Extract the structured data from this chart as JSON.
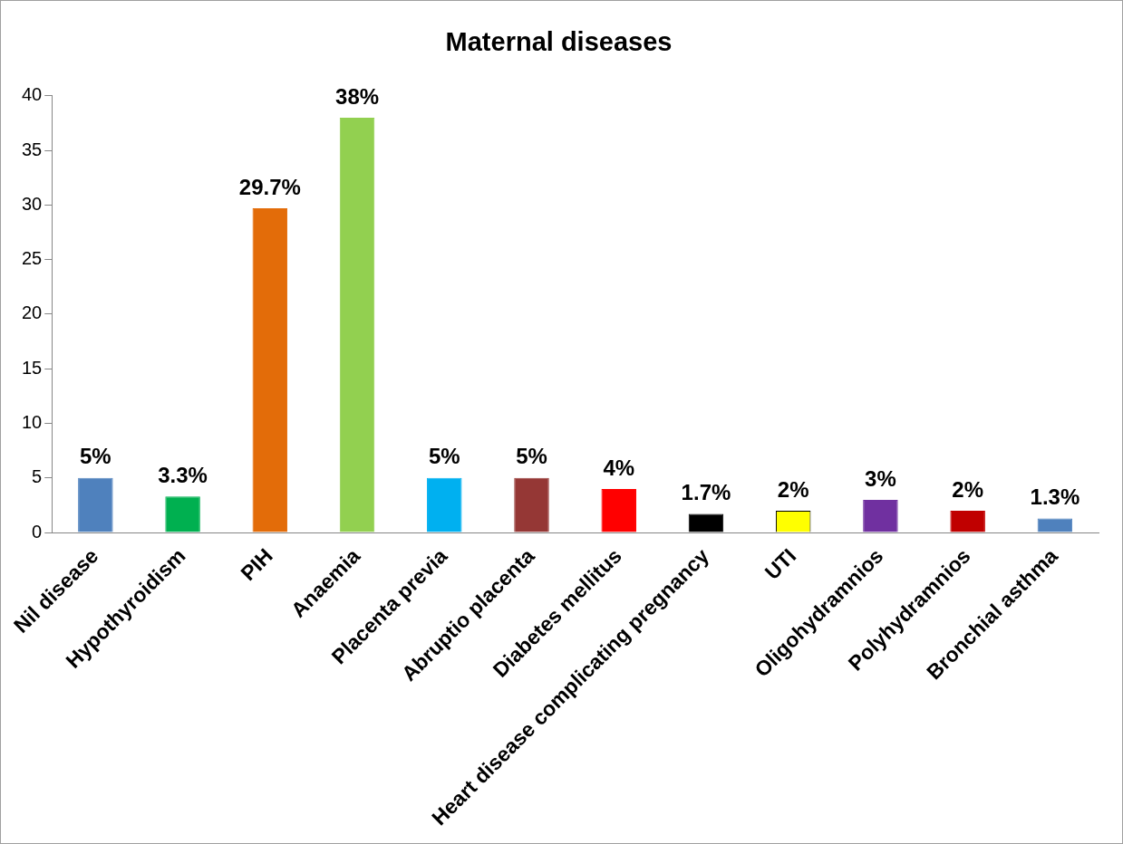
{
  "chart_data": {
    "type": "bar",
    "title": "Maternal diseases",
    "categories": [
      "Nil disease",
      "Hypothyroidism",
      "PIH",
      "Anaemia",
      "Placenta previa",
      "Abruptio placenta",
      "Diabetes mellitus",
      "Heart disease complicating pregnancy",
      "UTI",
      "Oligohydramnios",
      "Polyhydramnios",
      "Bronchial asthma"
    ],
    "values": [
      5,
      3.3,
      29.7,
      38,
      5,
      5,
      4,
      1.7,
      2,
      3,
      2,
      1.3
    ],
    "value_labels": [
      "5%",
      "3.3%",
      "29.7%",
      "38%",
      "5%",
      "5%",
      "4%",
      "1.7%",
      "2%",
      "3%",
      "2%",
      "1.3%"
    ],
    "colors": [
      "#4f81bd",
      "#00b050",
      "#e36c09",
      "#92d050",
      "#00b0f0",
      "#953735",
      "#ff0000",
      "#000000",
      "#ffff00",
      "#7030a0",
      "#c00000",
      "#4f81bd"
    ],
    "ylim": [
      0,
      40
    ],
    "yticks": [
      0,
      5,
      10,
      15,
      20,
      25,
      30,
      35,
      40
    ],
    "grid": false,
    "legend": false
  }
}
